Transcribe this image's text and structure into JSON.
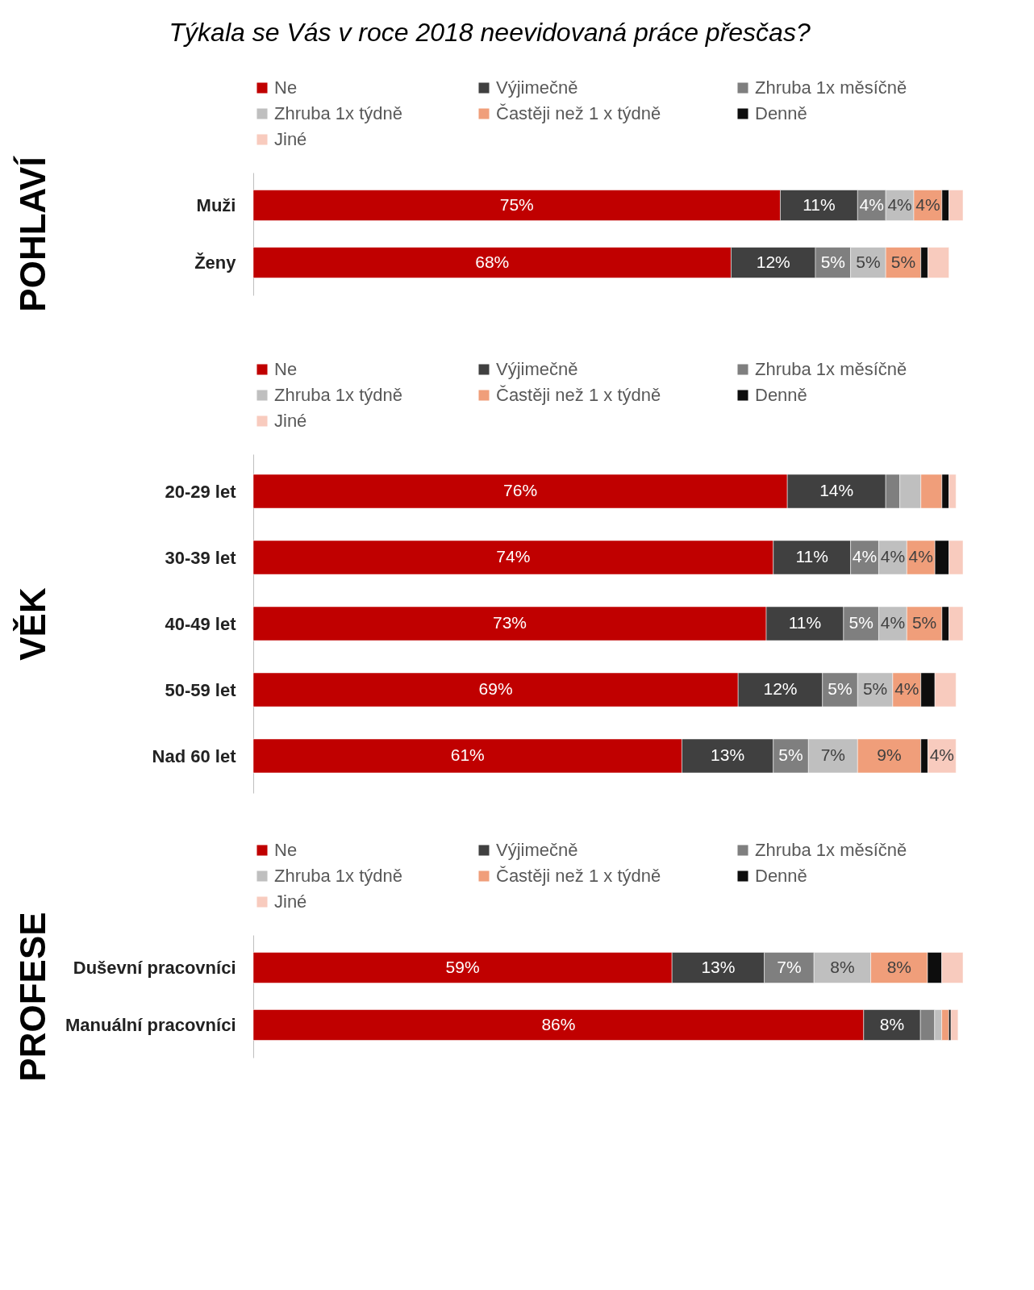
{
  "chart_data": [
    {
      "type": "bar",
      "orientation": "horizontal",
      "stacked": true,
      "title": "Týkala se Vás v roce 2018 neevidovaná práce přesčas?",
      "ylabel": "POHLAVÍ",
      "legend": "top",
      "tick_labels": "y",
      "categories": [
        "Muži",
        "Ženy"
      ],
      "series": [
        {
          "name": "Ne",
          "color": "#c00000",
          "values": [
            75,
            68
          ],
          "value_labels": [
            "75%",
            "68%"
          ]
        },
        {
          "name": "Výjimečně",
          "color": "#404040",
          "values": [
            11,
            12
          ],
          "value_labels": [
            "11%",
            "12%"
          ]
        },
        {
          "name": "Zhruba 1x měsíčně",
          "color": "#7f7f7f",
          "values": [
            4,
            5
          ],
          "value_labels": [
            "4%",
            "5%"
          ]
        },
        {
          "name": "Zhruba 1x týdně",
          "color": "#bfbfbf",
          "values": [
            4,
            5
          ],
          "value_labels": [
            "4%",
            "5%"
          ]
        },
        {
          "name": "Častěji než 1 x týdně",
          "color": "#f09e7a",
          "values": [
            4,
            5
          ],
          "value_labels": [
            "4%",
            "5%"
          ]
        },
        {
          "name": "Denně",
          "color": "#0d0d0d",
          "values": [
            1,
            1
          ],
          "value_labels": [
            null,
            null
          ]
        },
        {
          "name": "Jiné",
          "color": "#f8cbbe",
          "values": [
            2,
            3
          ],
          "value_labels": [
            null,
            null
          ]
        }
      ]
    },
    {
      "type": "bar",
      "orientation": "horizontal",
      "stacked": true,
      "ylabel": "VĚK",
      "legend": "top",
      "tick_labels": "y",
      "categories": [
        "20-29 let",
        "30-39 let",
        "40-49 let",
        "50-59 let",
        "Nad 60 let"
      ],
      "series": [
        {
          "name": "Ne",
          "color": "#c00000",
          "values": [
            76,
            74,
            73,
            69,
            61
          ],
          "value_labels": [
            "76%",
            "74%",
            "73%",
            "69%",
            "61%"
          ]
        },
        {
          "name": "Výjimečně",
          "color": "#404040",
          "values": [
            14,
            11,
            11,
            12,
            13
          ],
          "value_labels": [
            "14%",
            "11%",
            "11%",
            "12%",
            "13%"
          ]
        },
        {
          "name": "Zhruba 1x měsíčně",
          "color": "#7f7f7f",
          "values": [
            2,
            4,
            5,
            5,
            5
          ],
          "value_labels": [
            null,
            "4%",
            "5%",
            "5%",
            "5%"
          ]
        },
        {
          "name": "Zhruba 1x týdně",
          "color": "#bfbfbf",
          "values": [
            3,
            4,
            4,
            5,
            7
          ],
          "value_labels": [
            null,
            "4%",
            "4%",
            "5%",
            "7%"
          ]
        },
        {
          "name": "Častěji než 1 x týdně",
          "color": "#f09e7a",
          "values": [
            3,
            4,
            5,
            4,
            9
          ],
          "value_labels": [
            null,
            "4%",
            "5%",
            "4%",
            "9%"
          ]
        },
        {
          "name": "Denně",
          "color": "#0d0d0d",
          "values": [
            1,
            2,
            1,
            2,
            1
          ],
          "value_labels": [
            null,
            null,
            null,
            null,
            null
          ]
        },
        {
          "name": "Jiné",
          "color": "#f8cbbe",
          "values": [
            1,
            2,
            2,
            3,
            4
          ],
          "value_labels": [
            null,
            null,
            null,
            null,
            "4%"
          ]
        }
      ]
    },
    {
      "type": "bar",
      "orientation": "horizontal",
      "stacked": true,
      "ylabel": "PROFESE",
      "legend": "top",
      "tick_labels": "y",
      "categories": [
        "Duševní pracovníci",
        "Manuální pracovníci"
      ],
      "series": [
        {
          "name": "Ne",
          "color": "#c00000",
          "values": [
            59,
            86
          ],
          "value_labels": [
            "59%",
            "86%"
          ]
        },
        {
          "name": "Výjimečně",
          "color": "#404040",
          "values": [
            13,
            8
          ],
          "value_labels": [
            "13%",
            "8%"
          ]
        },
        {
          "name": "Zhruba 1x měsíčně",
          "color": "#7f7f7f",
          "values": [
            7,
            2
          ],
          "value_labels": [
            "7%",
            null
          ]
        },
        {
          "name": "Zhruba 1x týdně",
          "color": "#bfbfbf",
          "values": [
            8,
            1
          ],
          "value_labels": [
            "8%",
            null
          ]
        },
        {
          "name": "Častěji než 1 x týdně",
          "color": "#f09e7a",
          "values": [
            8,
            1
          ],
          "value_labels": [
            "8%",
            null
          ]
        },
        {
          "name": "Denně",
          "color": "#0d0d0d",
          "values": [
            2,
            0.3
          ],
          "value_labels": [
            null,
            null
          ]
        },
        {
          "name": "Jiné",
          "color": "#f8cbbe",
          "values": [
            3,
            1
          ],
          "value_labels": [
            null,
            null
          ]
        }
      ]
    }
  ]
}
